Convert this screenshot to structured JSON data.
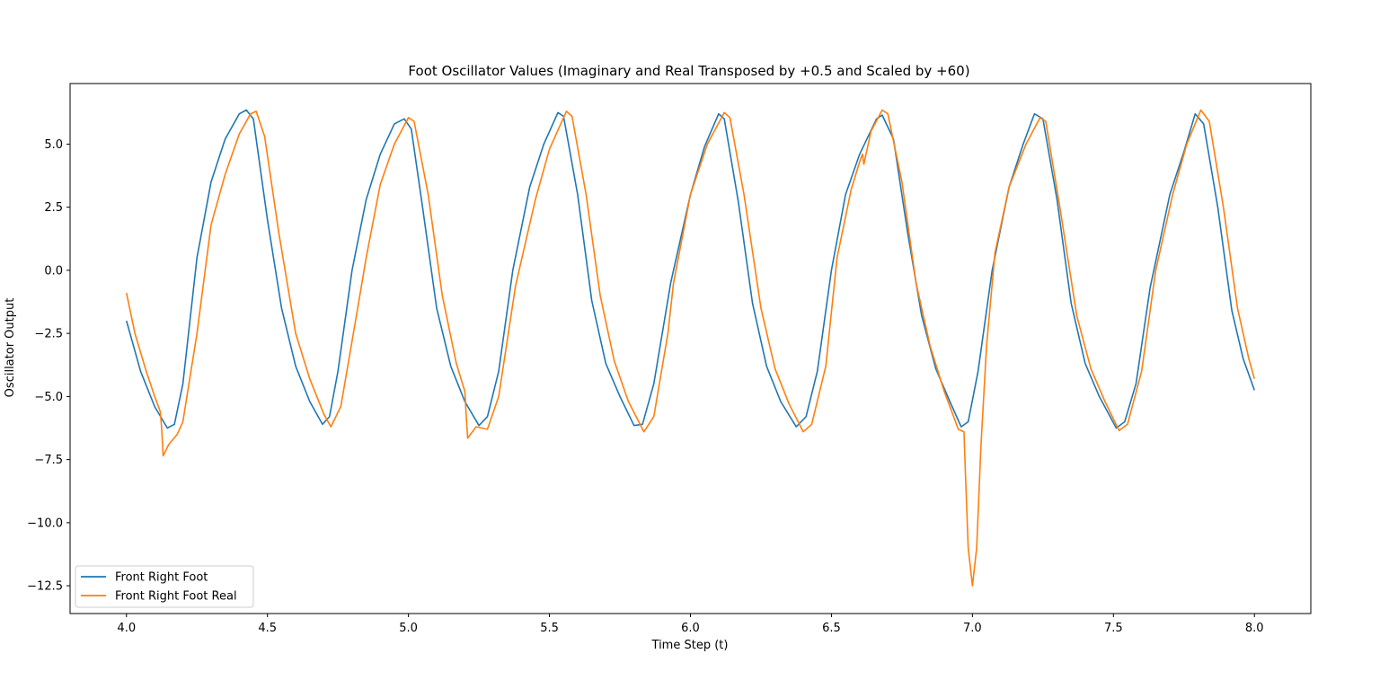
{
  "chart_data": {
    "type": "line",
    "title": "Foot Oscillator Values (Imaginary and Real Transposed by +0.5 and Scaled by +60)",
    "xlabel": "Time Step (t)",
    "ylabel": "Oscillator Output",
    "xlim": [
      3.8,
      8.2
    ],
    "ylim": [
      -13.6,
      7.4
    ],
    "x_ticks": [
      4.0,
      4.5,
      5.0,
      5.5,
      6.0,
      6.5,
      7.0,
      7.5,
      8.0
    ],
    "x_tick_labels": [
      "4.0",
      "4.5",
      "5.0",
      "5.5",
      "6.0",
      "6.5",
      "7.0",
      "7.5",
      "8.0"
    ],
    "y_ticks": [
      5.0,
      2.5,
      0.0,
      -2.5,
      -5.0,
      -7.5,
      -10.0,
      -12.5
    ],
    "y_tick_labels": [
      "5.0",
      "2.5",
      "0.0",
      "−2.5",
      "−5.0",
      "−7.5",
      "−10.0",
      "−12.5"
    ],
    "grid": false,
    "legend_position": "lower-left",
    "series": [
      {
        "name": "Front Right Foot",
        "color": "#1f77b4",
        "points": [
          [
            4.0,
            -2.0
          ],
          [
            4.05,
            -4.0
          ],
          [
            4.1,
            -5.4
          ],
          [
            4.145,
            -6.25
          ],
          [
            4.17,
            -6.1
          ],
          [
            4.2,
            -4.5
          ],
          [
            4.25,
            0.5
          ],
          [
            4.3,
            3.5
          ],
          [
            4.35,
            5.2
          ],
          [
            4.4,
            6.2
          ],
          [
            4.425,
            6.35
          ],
          [
            4.45,
            6.0
          ],
          [
            4.5,
            2.0
          ],
          [
            4.55,
            -1.5
          ],
          [
            4.6,
            -3.8
          ],
          [
            4.65,
            -5.2
          ],
          [
            4.695,
            -6.1
          ],
          [
            4.72,
            -5.8
          ],
          [
            4.75,
            -4.0
          ],
          [
            4.8,
            0.0
          ],
          [
            4.85,
            2.8
          ],
          [
            4.9,
            4.6
          ],
          [
            4.95,
            5.8
          ],
          [
            4.985,
            6.0
          ],
          [
            5.01,
            5.6
          ],
          [
            5.05,
            2.5
          ],
          [
            5.1,
            -1.5
          ],
          [
            5.15,
            -3.8
          ],
          [
            5.2,
            -5.2
          ],
          [
            5.25,
            -6.15
          ],
          [
            5.28,
            -5.8
          ],
          [
            5.32,
            -4.0
          ],
          [
            5.37,
            0.0
          ],
          [
            5.43,
            3.3
          ],
          [
            5.48,
            5.0
          ],
          [
            5.53,
            6.25
          ],
          [
            5.55,
            6.1
          ],
          [
            5.6,
            3.0
          ],
          [
            5.65,
            -1.2
          ],
          [
            5.7,
            -3.7
          ],
          [
            5.75,
            -5.0
          ],
          [
            5.8,
            -6.15
          ],
          [
            5.83,
            -6.1
          ],
          [
            5.87,
            -4.5
          ],
          [
            5.93,
            -0.5
          ],
          [
            6.0,
            3.0
          ],
          [
            6.05,
            4.9
          ],
          [
            6.1,
            6.2
          ],
          [
            6.12,
            6.0
          ],
          [
            6.17,
            2.7
          ],
          [
            6.22,
            -1.3
          ],
          [
            6.27,
            -3.8
          ],
          [
            6.32,
            -5.2
          ],
          [
            6.375,
            -6.2
          ],
          [
            6.41,
            -5.8
          ],
          [
            6.45,
            -4.0
          ],
          [
            6.5,
            0.0
          ],
          [
            6.55,
            3.0
          ],
          [
            6.6,
            4.6
          ],
          [
            6.66,
            6.0
          ],
          [
            6.68,
            6.15
          ],
          [
            6.72,
            5.2
          ],
          [
            6.77,
            1.5
          ],
          [
            6.82,
            -1.8
          ],
          [
            6.87,
            -3.9
          ],
          [
            6.92,
            -5.2
          ],
          [
            6.96,
            -6.2
          ],
          [
            6.985,
            -6.0
          ],
          [
            7.02,
            -4.0
          ],
          [
            7.07,
            0.0
          ],
          [
            7.13,
            3.3
          ],
          [
            7.18,
            5.0
          ],
          [
            7.22,
            6.2
          ],
          [
            7.25,
            6.0
          ],
          [
            7.3,
            2.8
          ],
          [
            7.35,
            -1.3
          ],
          [
            7.4,
            -3.7
          ],
          [
            7.45,
            -5.0
          ],
          [
            7.51,
            -6.25
          ],
          [
            7.54,
            -6.0
          ],
          [
            7.58,
            -4.5
          ],
          [
            7.63,
            -0.7
          ],
          [
            7.7,
            3.0
          ],
          [
            7.75,
            4.7
          ],
          [
            7.79,
            6.2
          ],
          [
            7.82,
            5.8
          ],
          [
            7.87,
            2.5
          ],
          [
            7.92,
            -1.6
          ],
          [
            7.96,
            -3.5
          ],
          [
            8.0,
            -4.75
          ]
        ]
      },
      {
        "name": "Front Right Foot Real",
        "color": "#ff7f0e",
        "points": [
          [
            4.0,
            -0.9
          ],
          [
            4.03,
            -2.5
          ],
          [
            4.07,
            -4.0
          ],
          [
            4.1,
            -5.0
          ],
          [
            4.12,
            -5.6
          ],
          [
            4.125,
            -6.3
          ],
          [
            4.13,
            -7.35
          ],
          [
            4.15,
            -6.9
          ],
          [
            4.18,
            -6.5
          ],
          [
            4.2,
            -6.0
          ],
          [
            4.25,
            -2.5
          ],
          [
            4.3,
            1.8
          ],
          [
            4.35,
            3.8
          ],
          [
            4.4,
            5.4
          ],
          [
            4.44,
            6.2
          ],
          [
            4.46,
            6.3
          ],
          [
            4.49,
            5.3
          ],
          [
            4.54,
            1.5
          ],
          [
            4.6,
            -2.5
          ],
          [
            4.65,
            -4.3
          ],
          [
            4.7,
            -5.7
          ],
          [
            4.725,
            -6.2
          ],
          [
            4.76,
            -5.4
          ],
          [
            4.82,
            -1.5
          ],
          [
            4.85,
            0.5
          ],
          [
            4.9,
            3.4
          ],
          [
            4.95,
            5.0
          ],
          [
            5.0,
            6.05
          ],
          [
            5.02,
            5.9
          ],
          [
            5.07,
            3.0
          ],
          [
            5.12,
            -1.0
          ],
          [
            5.17,
            -3.7
          ],
          [
            5.2,
            -4.8
          ],
          [
            5.205,
            -5.8
          ],
          [
            5.21,
            -6.65
          ],
          [
            5.24,
            -6.2
          ],
          [
            5.28,
            -6.3
          ],
          [
            5.32,
            -5.0
          ],
          [
            5.38,
            -0.6
          ],
          [
            5.45,
            2.8
          ],
          [
            5.5,
            4.8
          ],
          [
            5.56,
            6.3
          ],
          [
            5.58,
            6.1
          ],
          [
            5.63,
            3.0
          ],
          [
            5.68,
            -1.0
          ],
          [
            5.73,
            -3.6
          ],
          [
            5.78,
            -5.2
          ],
          [
            5.835,
            -6.4
          ],
          [
            5.87,
            -5.8
          ],
          [
            5.92,
            -2.5
          ],
          [
            5.94,
            -0.5
          ],
          [
            6.0,
            3.0
          ],
          [
            6.06,
            5.0
          ],
          [
            6.12,
            6.25
          ],
          [
            6.14,
            6.05
          ],
          [
            6.19,
            3.0
          ],
          [
            6.25,
            -1.5
          ],
          [
            6.3,
            -3.9
          ],
          [
            6.35,
            -5.3
          ],
          [
            6.4,
            -6.4
          ],
          [
            6.43,
            -6.1
          ],
          [
            6.48,
            -3.8
          ],
          [
            6.52,
            0.5
          ],
          [
            6.57,
            3.2
          ],
          [
            6.6,
            4.3
          ],
          [
            6.61,
            4.6
          ],
          [
            6.615,
            4.2
          ],
          [
            6.64,
            5.5
          ],
          [
            6.68,
            6.35
          ],
          [
            6.7,
            6.2
          ],
          [
            6.75,
            3.5
          ],
          [
            6.8,
            -0.5
          ],
          [
            6.85,
            -3.0
          ],
          [
            6.9,
            -4.8
          ],
          [
            6.95,
            -6.3
          ],
          [
            6.97,
            -6.4
          ],
          [
            6.975,
            -8.0
          ],
          [
            6.985,
            -11.0
          ],
          [
            7.0,
            -12.5
          ],
          [
            7.015,
            -11.0
          ],
          [
            7.03,
            -7.0
          ],
          [
            7.05,
            -3.0
          ],
          [
            7.08,
            0.7
          ],
          [
            7.13,
            3.3
          ],
          [
            7.19,
            5.0
          ],
          [
            7.24,
            6.05
          ],
          [
            7.26,
            5.9
          ],
          [
            7.31,
            2.5
          ],
          [
            7.37,
            -1.8
          ],
          [
            7.42,
            -3.9
          ],
          [
            7.47,
            -5.2
          ],
          [
            7.52,
            -6.35
          ],
          [
            7.55,
            -6.1
          ],
          [
            7.6,
            -4.0
          ],
          [
            7.65,
            0.0
          ],
          [
            7.71,
            3.0
          ],
          [
            7.76,
            5.0
          ],
          [
            7.81,
            6.35
          ],
          [
            7.84,
            5.9
          ],
          [
            7.89,
            2.5
          ],
          [
            7.94,
            -1.5
          ],
          [
            7.98,
            -3.5
          ],
          [
            8.0,
            -4.3
          ]
        ]
      }
    ]
  }
}
